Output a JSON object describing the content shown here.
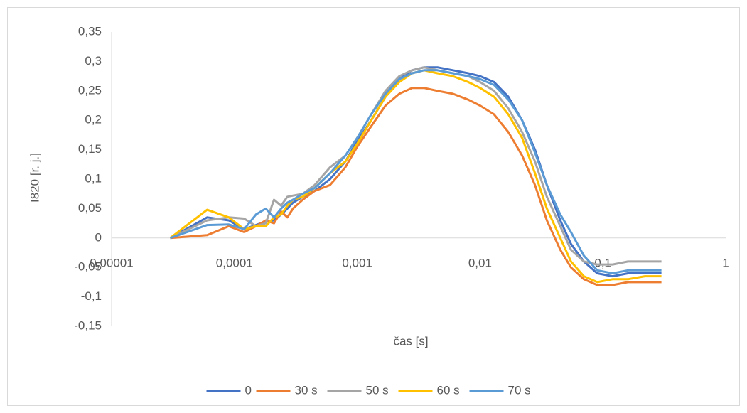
{
  "chart_data": {
    "type": "line",
    "xlabel": "čas [s]",
    "ylabel": "I820 [r. j.]",
    "xscale": "log",
    "grid": false,
    "legend": "bottom",
    "xlim": [
      1e-05,
      1
    ],
    "ylim": [
      -0.15,
      0.35
    ],
    "xticks": [
      {
        "value": 1e-05,
        "label": "0,00001"
      },
      {
        "value": 0.0001,
        "label": "0,0001"
      },
      {
        "value": 0.001,
        "label": "0,001"
      },
      {
        "value": 0.01,
        "label": "0,01"
      },
      {
        "value": 0.1,
        "label": "0,1"
      },
      1
    ],
    "yticks": [
      {
        "value": -0.15,
        "label": "-0,15"
      },
      {
        "value": -0.1,
        "label": "-0,1"
      },
      {
        "value": -0.05,
        "label": "-0,05"
      },
      0,
      {
        "value": 0.05,
        "label": "0,05"
      },
      {
        "value": 0.1,
        "label": "0,1"
      },
      {
        "value": 0.15,
        "label": "0,15"
      },
      {
        "value": 0.2,
        "label": "0,2"
      },
      {
        "value": 0.25,
        "label": "0,25"
      },
      {
        "value": 0.3,
        "label": "0,3"
      },
      {
        "value": 0.35,
        "label": "0,35"
      }
    ],
    "x": [
      3e-05,
      6e-05,
      9e-05,
      0.00012,
      0.00015,
      0.00018,
      0.00021,
      0.00024,
      0.00027,
      0.0003,
      0.00036,
      0.00045,
      0.0006,
      0.0008,
      0.001,
      0.0013,
      0.0017,
      0.0022,
      0.0028,
      0.0035,
      0.0045,
      0.006,
      0.008,
      0.01,
      0.013,
      0.017,
      0.022,
      0.028,
      0.035,
      0.045,
      0.055,
      0.07,
      0.09,
      0.12,
      0.16,
      0.22,
      0.3
    ],
    "series": [
      {
        "name": "0",
        "color": "#4472c4",
        "values": [
          0,
          0.035,
          0.03,
          0.015,
          0.022,
          0.028,
          0.03,
          0.04,
          0.05,
          0.06,
          0.07,
          0.08,
          0.1,
          0.13,
          0.165,
          0.2,
          0.24,
          0.27,
          0.285,
          0.29,
          0.29,
          0.285,
          0.28,
          0.275,
          0.265,
          0.24,
          0.2,
          0.15,
          0.09,
          0.03,
          -0.01,
          -0.04,
          -0.06,
          -0.065,
          -0.06,
          -0.06,
          -0.06
        ]
      },
      {
        "name": "30 s",
        "color": "#ed7d31",
        "values": [
          0,
          0.005,
          0.02,
          0.01,
          0.02,
          0.03,
          0.025,
          0.045,
          0.035,
          0.05,
          0.065,
          0.08,
          0.09,
          0.12,
          0.155,
          0.19,
          0.225,
          0.245,
          0.255,
          0.255,
          0.25,
          0.245,
          0.235,
          0.225,
          0.21,
          0.18,
          0.14,
          0.09,
          0.03,
          -0.02,
          -0.05,
          -0.07,
          -0.08,
          -0.08,
          -0.075,
          -0.075,
          -0.075
        ]
      },
      {
        "name": "50 s",
        "color": "#a5a5a5",
        "values": [
          0,
          0.03,
          0.035,
          0.033,
          0.02,
          0.025,
          0.065,
          0.055,
          0.07,
          0.072,
          0.075,
          0.09,
          0.12,
          0.14,
          0.17,
          0.21,
          0.25,
          0.275,
          0.285,
          0.29,
          0.285,
          0.28,
          0.275,
          0.265,
          0.25,
          0.22,
          0.18,
          0.13,
          0.07,
          0.02,
          -0.02,
          -0.04,
          -0.045,
          -0.045,
          -0.04,
          -0.04,
          -0.04
        ]
      },
      {
        "name": "60 s",
        "color": "#ffc000",
        "values": [
          0,
          0.048,
          0.035,
          0.015,
          0.02,
          0.02,
          0.035,
          0.04,
          0.055,
          0.065,
          0.07,
          0.085,
          0.11,
          0.13,
          0.16,
          0.2,
          0.24,
          0.265,
          0.28,
          0.285,
          0.28,
          0.275,
          0.265,
          0.255,
          0.24,
          0.21,
          0.17,
          0.11,
          0.05,
          0,
          -0.04,
          -0.065,
          -0.075,
          -0.07,
          -0.07,
          -0.065,
          -0.065
        ]
      },
      {
        "name": "70 s",
        "color": "#5b9bd5",
        "values": [
          0,
          0.022,
          0.023,
          0.015,
          0.04,
          0.05,
          0.035,
          0.05,
          0.06,
          0.065,
          0.075,
          0.085,
          0.11,
          0.14,
          0.17,
          0.21,
          0.245,
          0.27,
          0.28,
          0.285,
          0.285,
          0.28,
          0.275,
          0.27,
          0.26,
          0.235,
          0.2,
          0.145,
          0.09,
          0.04,
          0.01,
          -0.03,
          -0.055,
          -0.06,
          -0.055,
          -0.055,
          -0.055
        ]
      }
    ]
  }
}
